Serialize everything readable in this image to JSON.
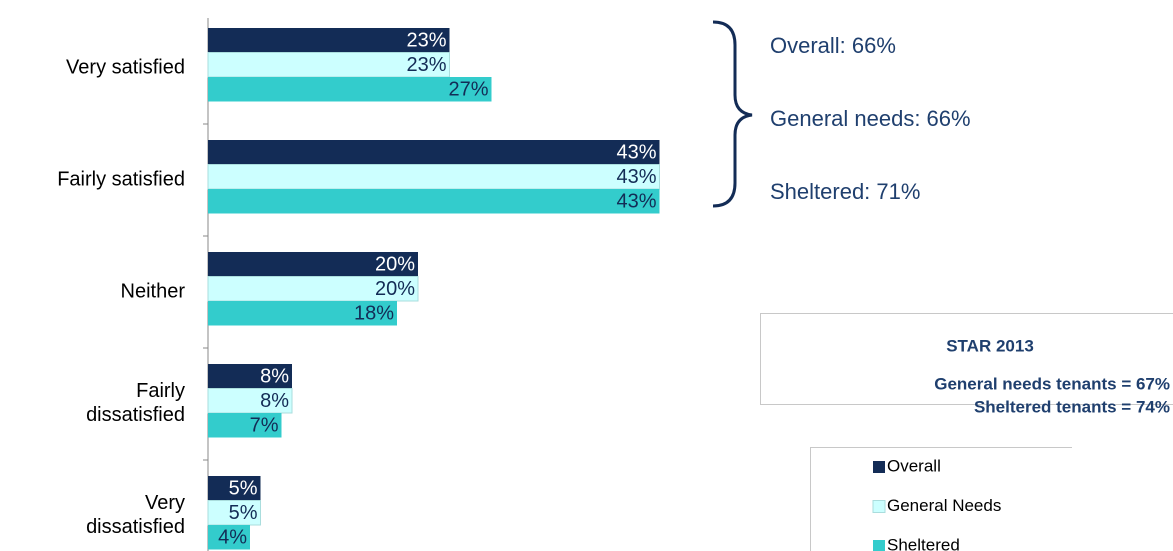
{
  "chart_data": {
    "type": "hbar",
    "categories": [
      "Very satisfied",
      "Fairly satisfied",
      "Neither",
      "Fairly\ndissatisfied",
      "Very\ndissatisfied"
    ],
    "series": [
      {
        "name": "Overall",
        "color": "#132c56",
        "values": [
          23,
          43,
          20,
          8,
          5
        ],
        "value_labels": [
          "23%",
          "43%",
          "20%",
          "8%",
          "5%"
        ]
      },
      {
        "name": "General Needs",
        "color": "#ccffff",
        "values": [
          23,
          43,
          20,
          8,
          5
        ],
        "value_labels": [
          "23%",
          "43%",
          "20%",
          "8%",
          "5%"
        ]
      },
      {
        "name": "Sheltered",
        "color": "#33cccc",
        "values": [
          27,
          43,
          18,
          7,
          4
        ],
        "value_labels": [
          "27%",
          "43%",
          "18%",
          "7%",
          "4%"
        ]
      }
    ],
    "xlim": [
      0,
      45
    ],
    "annotations": [
      "Overall: 66%",
      "General needs: 66%",
      "Sheltered: 71%"
    ],
    "note_title": "STAR 2013",
    "notes": [
      "General needs tenants = 67%",
      "Sheltered tenants = 74%"
    ]
  }
}
